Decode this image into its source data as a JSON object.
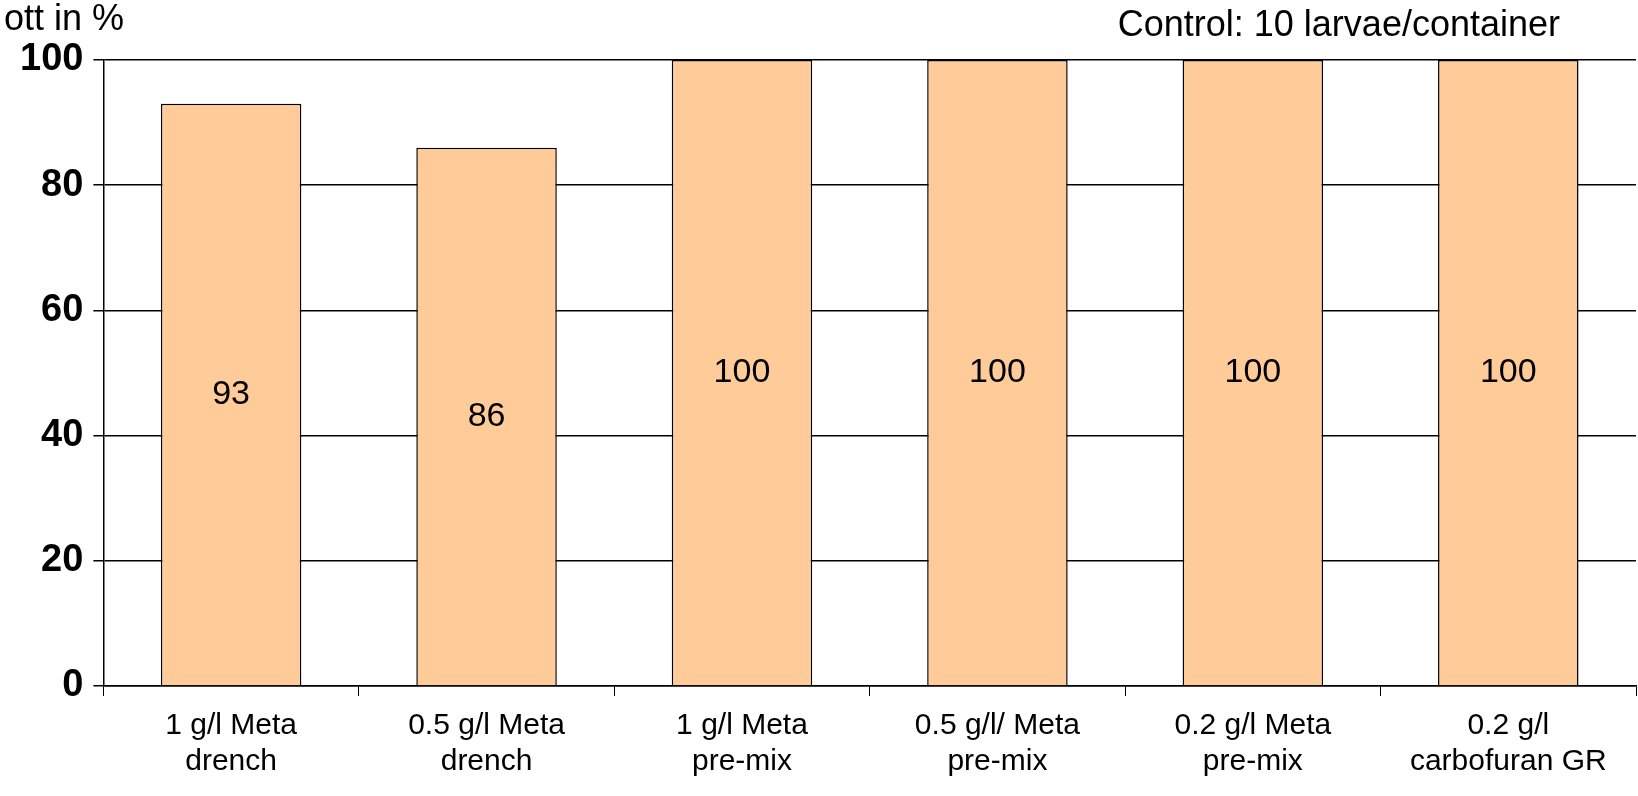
{
  "chart_data": {
    "type": "bar",
    "ylabel": "ott in %",
    "annotations": [
      "Control: 10 larvae/container"
    ],
    "categories": [
      "1 g/l Meta drench",
      "0.5 g/l Meta drench",
      "1 g/l Meta pre-mix",
      "0.5 g/l/ Meta pre-mix",
      "0.2 g/l Meta pre-mix",
      "0.2 g/l carbofuran GR"
    ],
    "values": [
      93,
      86,
      100,
      100,
      100,
      100
    ],
    "color": "#ffcc99",
    "ylim": [
      0,
      100
    ],
    "yticks": [
      0,
      20,
      40,
      60,
      80,
      100
    ],
    "grid": "y",
    "legend": false,
    "data_labels": true
  }
}
